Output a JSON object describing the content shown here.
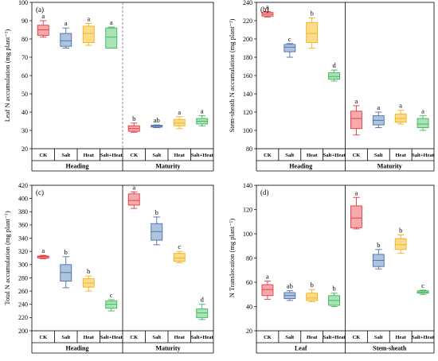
{
  "colors": {
    "CK": {
      "stroke": "#e8363c",
      "fill": "#f7a9ab"
    },
    "Salt": {
      "stroke": "#4a6fa5",
      "fill": "#aec3e0"
    },
    "Heat": {
      "stroke": "#f2b01e",
      "fill": "#fbdc88"
    },
    "Salt+Heat": {
      "stroke": "#3cb45a",
      "fill": "#a9e3b6"
    }
  },
  "chart_data": [
    {
      "type": "box",
      "panel": "(a)",
      "ylabel": "Leaf N accumulation (mg plant⁻¹)",
      "ylim": [
        20,
        100
      ],
      "yticks": [
        20,
        30,
        40,
        50,
        60,
        70,
        80,
        90,
        100
      ],
      "separator": "dashed",
      "groups": [
        {
          "name": "Heading",
          "boxes": [
            {
              "cat": "CK",
              "min": 81,
              "q1": 82,
              "median": 85,
              "q3": 87.5,
              "max": 90,
              "letter": "a"
            },
            {
              "cat": "Salt",
              "min": 75,
              "q1": 76,
              "median": 79,
              "q3": 83,
              "max": 86,
              "letter": "a"
            },
            {
              "cat": "Heat",
              "min": 76.5,
              "q1": 78,
              "median": 83,
              "q3": 87,
              "max": 88.5,
              "letter": "a"
            },
            {
              "cat": "Salt+Heat",
              "min": 75,
              "q1": 75,
              "median": 81,
              "q3": 86,
              "max": 86.5,
              "letter": "a"
            }
          ]
        },
        {
          "name": "Maturity",
          "boxes": [
            {
              "cat": "CK",
              "min": 29,
              "q1": 29.5,
              "median": 31,
              "q3": 32.5,
              "max": 34,
              "letter": "b"
            },
            {
              "cat": "Salt",
              "min": 31.5,
              "q1": 31.8,
              "median": 32.3,
              "q3": 32.8,
              "max": 33,
              "letter": "ab"
            },
            {
              "cat": "Heat",
              "min": 31,
              "q1": 32.5,
              "median": 34,
              "q3": 36,
              "max": 37.5,
              "letter": "a"
            },
            {
              "cat": "Salt+Heat",
              "min": 32.5,
              "q1": 33.5,
              "median": 35,
              "q3": 36.5,
              "max": 38,
              "letter": "a"
            }
          ]
        }
      ]
    },
    {
      "type": "box",
      "panel": "(b)",
      "ylabel": "Stem-sheath N accumulation (mg plant⁻¹)",
      "ylim": [
        80,
        240
      ],
      "yticks": [
        80,
        100,
        120,
        140,
        160,
        180,
        200,
        220,
        240
      ],
      "separator": "solid",
      "groups": [
        {
          "name": "Heading",
          "boxes": [
            {
              "cat": "CK",
              "min": 224,
              "q1": 225,
              "median": 227,
              "q3": 229,
              "max": 230,
              "letter": "a"
            },
            {
              "cat": "Salt",
              "min": 180,
              "q1": 186,
              "median": 191,
              "q3": 194,
              "max": 195,
              "letter": "c"
            },
            {
              "cat": "Heat",
              "min": 190,
              "q1": 196,
              "median": 206,
              "q3": 218,
              "max": 223,
              "letter": "b"
            },
            {
              "cat": "Salt+Heat",
              "min": 154,
              "q1": 156,
              "median": 159,
              "q3": 163,
              "max": 166,
              "letter": "d"
            }
          ]
        },
        {
          "name": "Maturity",
          "boxes": [
            {
              "cat": "CK",
              "min": 95,
              "q1": 102,
              "median": 113,
              "q3": 121,
              "max": 127,
              "letter": "a"
            },
            {
              "cat": "Salt",
              "min": 103,
              "q1": 106,
              "median": 111,
              "q3": 116,
              "max": 120,
              "letter": "a"
            },
            {
              "cat": "Heat",
              "min": 107,
              "q1": 109,
              "median": 113,
              "q3": 118,
              "max": 122,
              "letter": "a"
            },
            {
              "cat": "Salt+Heat",
              "min": 100,
              "q1": 103,
              "median": 107,
              "q3": 113,
              "max": 116,
              "letter": "a"
            }
          ]
        }
      ]
    },
    {
      "type": "box",
      "panel": "(c)",
      "ylabel": "Total N accumulation (mg plant⁻¹)",
      "ylim": [
        200,
        420
      ],
      "yticks": [
        200,
        220,
        240,
        260,
        280,
        300,
        320,
        340,
        360,
        380,
        400,
        420
      ],
      "separator": "solid",
      "groups": [
        {
          "name": "Heading",
          "boxes": [
            {
              "cat": "CK",
              "min": 309,
              "q1": 310,
              "median": 312,
              "q3": 313,
              "max": 314,
              "letter": "a"
            },
            {
              "cat": "Salt",
              "min": 265,
              "q1": 275,
              "median": 288,
              "q3": 300,
              "max": 312,
              "letter": "b"
            },
            {
              "cat": "Heat",
              "min": 260,
              "q1": 266,
              "median": 272,
              "q3": 279,
              "max": 283,
              "letter": "b"
            },
            {
              "cat": "Salt+Heat",
              "min": 230,
              "q1": 234,
              "median": 240,
              "q3": 245,
              "max": 247,
              "letter": "c"
            }
          ]
        },
        {
          "name": "Maturity",
          "boxes": [
            {
              "cat": "CK",
              "min": 385,
              "q1": 390,
              "median": 397,
              "q3": 407,
              "max": 410,
              "letter": "a"
            },
            {
              "cat": "Salt",
              "min": 330,
              "q1": 337,
              "median": 350,
              "q3": 362,
              "max": 372,
              "letter": "b"
            },
            {
              "cat": "Heat",
              "min": 303,
              "q1": 305,
              "median": 310,
              "q3": 317,
              "max": 320,
              "letter": "c"
            },
            {
              "cat": "Salt+Heat",
              "min": 217,
              "q1": 220,
              "median": 227,
              "q3": 233,
              "max": 240,
              "letter": "d"
            }
          ]
        }
      ]
    },
    {
      "type": "box",
      "panel": "(d)",
      "ylabel": "N Translocation (mg plant⁻¹)",
      "ylim": [
        20,
        140
      ],
      "yticks": [
        20,
        40,
        60,
        80,
        100,
        120,
        140
      ],
      "separator": "solid",
      "groups": [
        {
          "name": "Leaf",
          "boxes": [
            {
              "cat": "CK",
              "min": 46,
              "q1": 49,
              "median": 54,
              "q3": 58,
              "max": 61,
              "letter": "a"
            },
            {
              "cat": "Salt",
              "min": 45,
              "q1": 46.5,
              "median": 49,
              "q3": 51.5,
              "max": 53,
              "letter": "ab"
            },
            {
              "cat": "Heat",
              "min": 44,
              "q1": 45,
              "median": 47,
              "q3": 51,
              "max": 54,
              "letter": "b"
            },
            {
              "cat": "Salt+Heat",
              "min": 40,
              "q1": 41,
              "median": 45,
              "q3": 49,
              "max": 51,
              "letter": "b"
            }
          ]
        },
        {
          "name": "Stem-sheath",
          "boxes": [
            {
              "cat": "CK",
              "min": 104,
              "q1": 105,
              "median": 113,
              "q3": 123,
              "max": 130,
              "letter": "a"
            },
            {
              "cat": "Salt",
              "min": 71,
              "q1": 73,
              "median": 78,
              "q3": 83,
              "max": 87,
              "letter": "b"
            },
            {
              "cat": "Heat",
              "min": 84,
              "q1": 87,
              "median": 91,
              "q3": 96,
              "max": 99,
              "letter": "b"
            },
            {
              "cat": "Salt+Heat",
              "min": 50,
              "q1": 51,
              "median": 52,
              "q3": 53,
              "max": 53.5,
              "letter": "c"
            }
          ]
        }
      ]
    }
  ]
}
